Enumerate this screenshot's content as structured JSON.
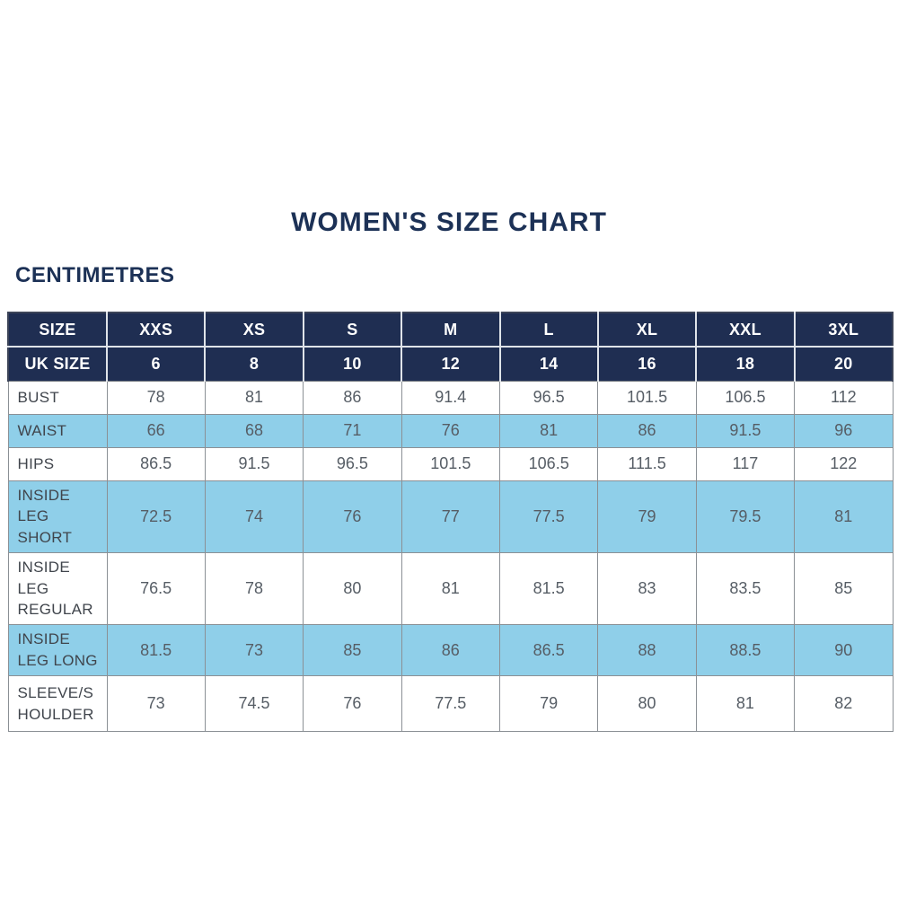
{
  "colors": {
    "header_navy": "#1f2e52",
    "stripe_blue": "#8fcfe9",
    "heading_text": "#1c3156",
    "body_text": "#565d65",
    "border_gray": "#8b9095"
  },
  "chart_data": {
    "type": "table",
    "title": "WOMEN'S SIZE CHART",
    "unit": "CENTIMETRES",
    "header_rows": [
      {
        "label": "SIZE",
        "values": [
          "XXS",
          "XS",
          "S",
          "M",
          "L",
          "XL",
          "XXL",
          "3XL"
        ]
      },
      {
        "label": "UK SIZE",
        "values": [
          "6",
          "8",
          "10",
          "12",
          "14",
          "16",
          "18",
          "20"
        ]
      }
    ],
    "rows": [
      {
        "label": "BUST",
        "values": [
          "78",
          "81",
          "86",
          "91.4",
          "96.5",
          "101.5",
          "106.5",
          "112"
        ]
      },
      {
        "label": "WAIST",
        "values": [
          "66",
          "68",
          "71",
          "76",
          "81",
          "86",
          "91.5",
          "96"
        ]
      },
      {
        "label": "HIPS",
        "values": [
          "86.5",
          "91.5",
          "96.5",
          "101.5",
          "106.5",
          "111.5",
          "117",
          "122"
        ]
      },
      {
        "label": "INSIDE LEG SHORT",
        "values": [
          "72.5",
          "74",
          "76",
          "77",
          "77.5",
          "79",
          "79.5",
          "81"
        ]
      },
      {
        "label": "INSIDE LEG REGULAR",
        "values": [
          "76.5",
          "78",
          "80",
          "81",
          "81.5",
          "83",
          "83.5",
          "85"
        ]
      },
      {
        "label": "INSIDE LEG LONG",
        "values": [
          "81.5",
          "73",
          "85",
          "86",
          "86.5",
          "88",
          "88.5",
          "90"
        ]
      },
      {
        "label": "SLEEVE/SHOULDER",
        "values": [
          "73",
          "74.5",
          "76",
          "77.5",
          "79",
          "80",
          "81",
          "82"
        ]
      }
    ]
  }
}
